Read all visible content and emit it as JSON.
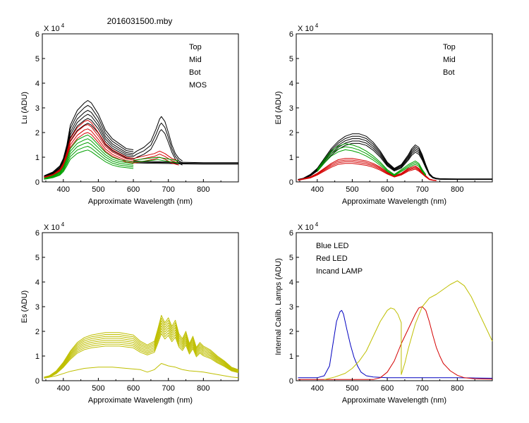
{
  "figure_title": "2016031500.mby",
  "chart_data": [
    {
      "type": "line",
      "id": "lu",
      "ylabel": "Lu (ADU)",
      "xlabel": "Approximate Wavelength (nm)",
      "xlim": [
        340,
        900
      ],
      "ylim": [
        0,
        6
      ],
      "xticks": [
        400,
        500,
        600,
        700,
        800
      ],
      "xtick_labels": [
        "400",
        "500",
        "600",
        "700",
        "800"
      ],
      "yticks": [
        0,
        1,
        2,
        3,
        4,
        5,
        6
      ],
      "ytick_labels": [
        "0",
        "1",
        "2",
        "3",
        "4",
        "5",
        "6"
      ],
      "exponent_prefix": "X 10",
      "exponent_power": "4",
      "legend": [
        {
          "label": "Top",
          "color": "#000000"
        },
        {
          "label": "Mid",
          "color": "#d40000"
        },
        {
          "label": "Bot",
          "color": "#00a000"
        },
        {
          "label": "MOS",
          "color": "#0000c0"
        }
      ],
      "series": [
        {
          "name": "Top",
          "color": "#000000",
          "scales": [
            1.0,
            0.94,
            0.88,
            0.83,
            0.78,
            0.72
          ],
          "x": [
            345,
            370,
            390,
            400,
            410,
            420,
            440,
            460,
            470,
            480,
            500,
            520,
            540,
            560,
            580,
            600
          ],
          "y": [
            0.25,
            0.4,
            0.65,
            0.95,
            1.5,
            2.3,
            2.9,
            3.2,
            3.3,
            3.2,
            2.75,
            2.1,
            1.75,
            1.55,
            1.35,
            1.3
          ]
        },
        {
          "name": "Top",
          "color": "#000000",
          "scales": [
            1.0,
            0.9,
            0.8
          ],
          "x": [
            600,
            610,
            630,
            650,
            665,
            675,
            680,
            690,
            700,
            710,
            720,
            730,
            740
          ],
          "y": [
            1.15,
            1.25,
            1.4,
            1.65,
            2.15,
            2.55,
            2.65,
            2.45,
            2.0,
            1.5,
            1.15,
            0.95,
            0.85
          ]
        },
        {
          "name": "Top",
          "color": "#000000",
          "scales": [
            1.0,
            0.96,
            0.92
          ],
          "x": [
            600,
            650,
            700,
            750,
            800,
            850,
            900
          ],
          "y": [
            0.84,
            0.82,
            0.81,
            0.79,
            0.78,
            0.78,
            0.78
          ]
        },
        {
          "name": "Mid",
          "color": "#d40000",
          "scales": [
            1.0,
            0.93,
            0.86,
            0.8
          ],
          "x": [
            345,
            370,
            390,
            400,
            410,
            420,
            440,
            460,
            470,
            480,
            500,
            520,
            540,
            560,
            580,
            600
          ],
          "y": [
            0.2,
            0.3,
            0.5,
            0.75,
            1.2,
            1.75,
            2.2,
            2.45,
            2.5,
            2.4,
            2.0,
            1.55,
            1.3,
            1.15,
            1.0,
            0.95
          ]
        },
        {
          "name": "Mid",
          "color": "#d40000",
          "scales": [
            1.0,
            0.9,
            0.8
          ],
          "x": [
            600,
            630,
            660,
            675,
            690,
            710,
            730
          ],
          "y": [
            0.95,
            1.05,
            1.15,
            1.25,
            1.15,
            0.95,
            0.85
          ]
        },
        {
          "name": "Bot",
          "color": "#00a000",
          "scales": [
            1.0,
            0.92,
            0.84,
            0.76,
            0.68
          ],
          "x": [
            345,
            370,
            390,
            400,
            410,
            420,
            440,
            460,
            470,
            480,
            500,
            520,
            540,
            560,
            580,
            600
          ],
          "y": [
            0.15,
            0.25,
            0.4,
            0.6,
            0.95,
            1.35,
            1.7,
            1.85,
            1.9,
            1.8,
            1.5,
            1.2,
            1.0,
            0.9,
            0.85,
            0.8
          ]
        },
        {
          "name": "Bot",
          "color": "#00a000",
          "scales": [
            1.0,
            0.9
          ],
          "x": [
            600,
            640,
            670,
            690,
            710,
            730
          ],
          "y": [
            0.88,
            0.95,
            1.0,
            0.95,
            0.9,
            0.85
          ]
        }
      ]
    },
    {
      "type": "line",
      "id": "ed",
      "ylabel": "Ed  (ADU)",
      "xlabel": "Approximate Wavelength (nm)",
      "xlim": [
        340,
        900
      ],
      "ylim": [
        0,
        6
      ],
      "xticks": [
        400,
        500,
        600,
        700,
        800
      ],
      "xtick_labels": [
        "400",
        "500",
        "600",
        "700",
        "800"
      ],
      "yticks": [
        0,
        1,
        2,
        3,
        4,
        5,
        6
      ],
      "ytick_labels": [
        "0",
        "1",
        "2",
        "3",
        "4",
        "5",
        "6"
      ],
      "exponent_prefix": "X 10",
      "exponent_power": "4",
      "legend": [
        {
          "label": "Top",
          "color": "#000000"
        },
        {
          "label": "Mid",
          "color": "#d40000"
        },
        {
          "label": "Bot",
          "color": "#00a000"
        }
      ],
      "series": [
        {
          "name": "Top",
          "color": "#000000",
          "scales": [
            1.0,
            0.95,
            0.9,
            0.85,
            0.8
          ],
          "x": [
            345,
            360,
            380,
            400,
            420,
            440,
            460,
            480,
            500,
            520,
            540,
            560,
            580,
            600,
            620,
            640,
            660,
            670,
            680,
            690,
            700,
            710,
            720,
            730,
            740,
            750,
            800,
            900
          ],
          "y": [
            0.1,
            0.15,
            0.3,
            0.55,
            0.95,
            1.35,
            1.65,
            1.85,
            1.95,
            1.95,
            1.85,
            1.6,
            1.25,
            0.8,
            0.55,
            0.7,
            1.1,
            1.35,
            1.5,
            1.4,
            1.1,
            0.7,
            0.35,
            0.2,
            0.15,
            0.13,
            0.12,
            0.12
          ]
        },
        {
          "name": "Mid",
          "color": "#d40000",
          "scales": [
            1.0,
            0.93,
            0.86,
            0.79
          ],
          "x": [
            345,
            380,
            400,
            420,
            440,
            460,
            480,
            500,
            520,
            540,
            560,
            580,
            600,
            620,
            640,
            660,
            680,
            690,
            700,
            710,
            720,
            730,
            740
          ],
          "y": [
            0.08,
            0.2,
            0.35,
            0.55,
            0.75,
            0.9,
            0.95,
            0.95,
            0.9,
            0.85,
            0.75,
            0.6,
            0.4,
            0.25,
            0.35,
            0.55,
            0.65,
            0.55,
            0.4,
            0.25,
            0.12,
            0.08,
            0.06
          ]
        },
        {
          "name": "Bot",
          "color": "#00a000",
          "scales": [
            1.0,
            0.92,
            0.84
          ],
          "x": [
            400,
            420,
            440,
            460,
            480,
            500,
            520,
            540,
            560,
            580,
            600,
            620,
            640,
            660,
            680,
            690,
            700,
            710
          ],
          "y": [
            0.5,
            0.9,
            1.25,
            1.45,
            1.55,
            1.5,
            1.4,
            1.25,
            1.05,
            0.8,
            0.5,
            0.3,
            0.5,
            0.7,
            0.85,
            0.75,
            0.5,
            0.3
          ]
        }
      ]
    },
    {
      "type": "line",
      "id": "es",
      "ylabel": "Es  (ADU)",
      "xlabel": "Approximate Wavelength (nm)",
      "xlim": [
        340,
        900
      ],
      "ylim": [
        0,
        6
      ],
      "xticks": [
        400,
        500,
        600,
        700,
        800
      ],
      "xtick_labels": [
        "400",
        "500",
        "600",
        "700",
        "800"
      ],
      "yticks": [
        0,
        1,
        2,
        3,
        4,
        5,
        6
      ],
      "ytick_labels": [
        "0",
        "1",
        "2",
        "3",
        "4",
        "5",
        "6"
      ],
      "exponent_prefix": "X 10",
      "exponent_power": "4",
      "legend": [],
      "series": [
        {
          "name": "Es",
          "color": "#bfbf00",
          "scales": [
            1.0,
            0.96,
            0.92,
            0.88,
            0.84,
            0.8,
            0.76,
            0.72
          ],
          "x": [
            345,
            360,
            380,
            400,
            420,
            440,
            460,
            480,
            500,
            520,
            540,
            560,
            580,
            600,
            620,
            640,
            660,
            670,
            680,
            690,
            700,
            710,
            720,
            730,
            740,
            750,
            760,
            770,
            780,
            790,
            800,
            820,
            840,
            860,
            880,
            900
          ],
          "y": [
            0.15,
            0.2,
            0.4,
            0.75,
            1.2,
            1.55,
            1.75,
            1.85,
            1.9,
            1.95,
            1.95,
            1.95,
            1.9,
            1.85,
            1.6,
            1.45,
            1.6,
            2.1,
            2.65,
            2.35,
            2.55,
            2.2,
            2.45,
            1.9,
            1.7,
            2.0,
            1.5,
            1.8,
            1.35,
            1.55,
            1.4,
            1.25,
            1.0,
            0.8,
            0.55,
            0.45
          ]
        },
        {
          "name": "Es",
          "color": "#bfbf00",
          "scales": [
            1.0
          ],
          "x": [
            345,
            380,
            420,
            460,
            500,
            540,
            580,
            620,
            640,
            660,
            680,
            700,
            720,
            740,
            760,
            780,
            800,
            840,
            880,
            900
          ],
          "y": [
            0.1,
            0.2,
            0.38,
            0.5,
            0.55,
            0.55,
            0.5,
            0.45,
            0.35,
            0.45,
            0.7,
            0.6,
            0.55,
            0.45,
            0.4,
            0.38,
            0.35,
            0.25,
            0.15,
            0.12
          ]
        }
      ]
    },
    {
      "type": "line",
      "id": "lamps",
      "ylabel": "Internal Calib. Lamps (ADU)",
      "xlabel": "Approximate Wavelength (nm)",
      "xlim": [
        340,
        900
      ],
      "ylim": [
        0,
        6
      ],
      "xticks": [
        400,
        500,
        600,
        700,
        800
      ],
      "xtick_labels": [
        "400",
        "500",
        "600",
        "700",
        "800"
      ],
      "yticks": [
        0,
        1,
        2,
        3,
        4,
        5,
        6
      ],
      "ytick_labels": [
        "0",
        "1",
        "2",
        "3",
        "4",
        "5",
        "6"
      ],
      "exponent_prefix": "X 10",
      "exponent_power": "4",
      "legend": [
        {
          "label": "Blue LED",
          "color": "#0000c0"
        },
        {
          "label": "Red LED",
          "color": "#d40000"
        },
        {
          "label": "Incand LAMP",
          "color": "#bfbf00"
        }
      ],
      "series": [
        {
          "name": "Blue LED",
          "color": "#0000c0",
          "scales": [
            1.0
          ],
          "x": [
            345,
            400,
            420,
            435,
            445,
            455,
            465,
            470,
            475,
            485,
            495,
            505,
            515,
            525,
            540,
            560,
            600,
            700,
            800,
            900
          ],
          "y": [
            0.12,
            0.12,
            0.2,
            0.6,
            1.5,
            2.4,
            2.8,
            2.85,
            2.7,
            2.05,
            1.45,
            0.95,
            0.6,
            0.35,
            0.2,
            0.15,
            0.12,
            0.12,
            0.12,
            0.1
          ]
        },
        {
          "name": "Red LED",
          "color": "#d40000",
          "scales": [
            1.0
          ],
          "x": [
            345,
            560,
            580,
            600,
            620,
            640,
            660,
            680,
            690,
            700,
            710,
            720,
            730,
            740,
            750,
            760,
            780,
            800,
            820,
            850,
            900
          ],
          "y": [
            0.05,
            0.05,
            0.12,
            0.35,
            0.8,
            1.5,
            2.1,
            2.7,
            2.95,
            3.0,
            2.85,
            2.4,
            1.85,
            1.35,
            1.0,
            0.7,
            0.4,
            0.22,
            0.12,
            0.08,
            0.06
          ]
        },
        {
          "name": "Incand LAMP",
          "color": "#bfbf00",
          "scales": [
            1.0
          ],
          "x": [
            420,
            450,
            480,
            500,
            520,
            540,
            560,
            580,
            600,
            610,
            620,
            630,
            640,
            640,
            650,
            660,
            680,
            700,
            720,
            740,
            760,
            780,
            800,
            820,
            840,
            860,
            880,
            900
          ],
          "y": [
            0.05,
            0.15,
            0.3,
            0.5,
            0.8,
            1.2,
            1.8,
            2.4,
            2.85,
            2.95,
            2.9,
            2.7,
            2.35,
            0.25,
            0.7,
            1.3,
            2.3,
            3.0,
            3.35,
            3.5,
            3.7,
            3.9,
            4.05,
            3.85,
            3.4,
            2.8,
            2.2,
            1.6
          ]
        }
      ]
    }
  ]
}
